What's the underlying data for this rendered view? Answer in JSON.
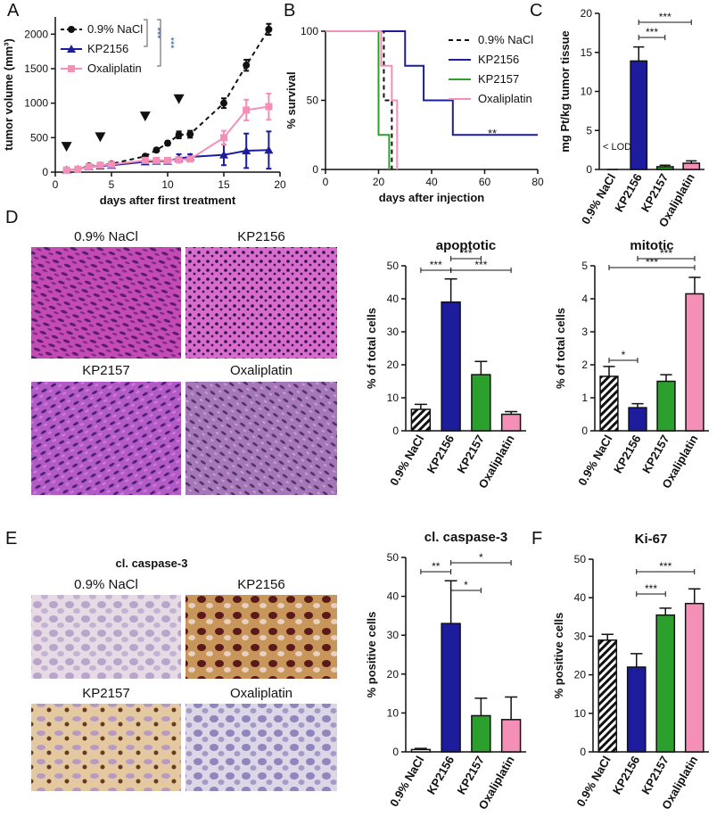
{
  "figure": {
    "panel_labels": [
      "A",
      "B",
      "C",
      "D",
      "E",
      "F"
    ],
    "images_D": [
      "0.9% NaCl",
      "KP2156",
      "KP2157",
      "Oxaliplatin"
    ],
    "images_E_title": "cl. caspase-3",
    "images_E": [
      "0.9% NaCl",
      "KP2156",
      "KP2157",
      "Oxaliplatin"
    ]
  },
  "chart_data": [
    {
      "type": "line",
      "xlabel": "days after first treatment",
      "ylabel": "tumor volume (mm³)",
      "xlim": [
        0,
        20
      ],
      "xticks": [
        0,
        5,
        10,
        15,
        20
      ],
      "ylim": [
        0,
        2250
      ],
      "yticks": [
        0,
        500,
        1000,
        1500,
        2000
      ],
      "x": [
        1,
        2,
        3,
        4,
        5,
        8,
        9,
        10,
        11,
        12,
        15,
        17,
        19
      ],
      "series": [
        {
          "name": "0.9% NaCl",
          "color": "#111111",
          "marker": "circle",
          "dashed": true,
          "values": [
            30,
            40,
            90,
            100,
            120,
            230,
            320,
            420,
            540,
            550,
            1000,
            1550,
            2070
          ],
          "errors": [
            5,
            5,
            10,
            10,
            15,
            20,
            25,
            30,
            50,
            50,
            70,
            80,
            80
          ]
        },
        {
          "name": "KP2156",
          "color": "#1c1c9c",
          "marker": "triangle",
          "dashed": false,
          "values": [
            30,
            40,
            80,
            90,
            100,
            150,
            160,
            160,
            200,
            220,
            250,
            310,
            320
          ],
          "errors": [
            5,
            5,
            10,
            10,
            10,
            20,
            20,
            20,
            60,
            40,
            150,
            250,
            270
          ]
        },
        {
          "name": "Oxaliplatin",
          "color": "#f48fb8",
          "marker": "square",
          "dashed": false,
          "values": [
            30,
            40,
            80,
            100,
            110,
            170,
            170,
            170,
            180,
            190,
            500,
            900,
            950
          ],
          "errors": [
            5,
            5,
            10,
            10,
            10,
            20,
            20,
            20,
            20,
            30,
            100,
            150,
            190
          ]
        }
      ],
      "treatment_markers": {
        "x": [
          1,
          4,
          8,
          11
        ],
        "y": [
          360,
          500,
          800,
          1050
        ]
      },
      "annotations": [
        "***",
        "***"
      ]
    },
    {
      "type": "step",
      "xlabel": "days after injection",
      "ylabel": "% survival",
      "xlim": [
        0,
        80
      ],
      "xticks": [
        0,
        20,
        40,
        60,
        80
      ],
      "ylim": [
        0,
        100
      ],
      "yticks": [
        0,
        50,
        100
      ],
      "series": [
        {
          "name": "0.9% NaCl",
          "color": "#111111",
          "dashed": true,
          "x": [
            0,
            22,
            22,
            25,
            25
          ],
          "values": [
            100,
            100,
            50,
            50,
            0
          ]
        },
        {
          "name": "KP2156",
          "color": "#1c1c9c",
          "dashed": false,
          "x": [
            0,
            30,
            30,
            37,
            37,
            48,
            48,
            80
          ],
          "values": [
            100,
            100,
            75,
            75,
            50,
            50,
            25,
            25
          ]
        },
        {
          "name": "KP2157",
          "color": "#2ca02c",
          "dashed": false,
          "x": [
            0,
            20,
            20,
            24,
            24
          ],
          "values": [
            100,
            100,
            25,
            25,
            0
          ]
        },
        {
          "name": "Oxaliplatin",
          "color": "#f48fb8",
          "dashed": false,
          "x": [
            0,
            21,
            21,
            25,
            25,
            27,
            27
          ],
          "values": [
            100,
            100,
            75,
            75,
            50,
            50,
            0
          ]
        }
      ],
      "annotations": [
        "**"
      ]
    },
    {
      "type": "bar",
      "ylabel": "mg Pt/kg tumor tissue",
      "categories": [
        "0.9% NaCl",
        "KP2156",
        "KP2157",
        "Oxaliplatin"
      ],
      "values": [
        0,
        13.9,
        0.35,
        0.8
      ],
      "errors": [
        0,
        1.8,
        0.2,
        0.3
      ],
      "colors": [
        "hatch",
        "#1c1c9c",
        "#2ca02c",
        "#f48fb8"
      ],
      "ylim": [
        0,
        20
      ],
      "yticks": [
        0,
        5,
        10,
        15,
        20
      ],
      "annotations": [
        "***",
        "***"
      ],
      "note": "< LOD"
    },
    {
      "type": "bar",
      "title": "apoptotic",
      "ylabel": "% of total cells",
      "categories": [
        "0.9% NaCl",
        "KP2156",
        "KP2157",
        "Oxaliplatin"
      ],
      "values": [
        6.5,
        39,
        17,
        5
      ],
      "errors": [
        1.5,
        7,
        4,
        0.8
      ],
      "colors": [
        "hatch",
        "#1c1c9c",
        "#2ca02c",
        "#f48fb8"
      ],
      "ylim": [
        0,
        50
      ],
      "yticks": [
        0,
        10,
        20,
        30,
        40,
        50
      ],
      "annotations": [
        "***",
        "***",
        "***"
      ]
    },
    {
      "type": "bar",
      "title": "mitotic",
      "ylabel": "% of total cells",
      "categories": [
        "0.9% NaCl",
        "KP2156",
        "KP2157",
        "Oxaliplatin"
      ],
      "values": [
        1.65,
        0.7,
        1.5,
        4.15
      ],
      "errors": [
        0.3,
        0.12,
        0.2,
        0.5
      ],
      "colors": [
        "hatch",
        "#1c1c9c",
        "#2ca02c",
        "#f48fb8"
      ],
      "ylim": [
        0,
        5
      ],
      "yticks": [
        0,
        1,
        2,
        3,
        4,
        5
      ],
      "annotations": [
        "*",
        "***",
        "***"
      ]
    },
    {
      "type": "bar",
      "title": "cl. caspase-3",
      "ylabel": "% positive cells",
      "categories": [
        "0.9% NaCl",
        "KP2156",
        "KP2157",
        "Oxaliplatin"
      ],
      "values": [
        0.6,
        33,
        9.3,
        8.3
      ],
      "errors": [
        0.3,
        11,
        4.5,
        5.8
      ],
      "colors": [
        "#ffffff",
        "#1c1c9c",
        "#2ca02c",
        "#f48fb8"
      ],
      "ylim": [
        0,
        50
      ],
      "yticks": [
        0,
        10,
        20,
        30,
        40,
        50
      ],
      "annotations": [
        "**",
        "*",
        "*"
      ]
    },
    {
      "type": "bar",
      "title": "Ki-67",
      "ylabel": "% positive cells",
      "categories": [
        "0.9% NaCl",
        "KP2156",
        "KP2157",
        "Oxaliplatin"
      ],
      "values": [
        29,
        22,
        35.5,
        38.5
      ],
      "errors": [
        1.5,
        3.5,
        1.8,
        3.8
      ],
      "colors": [
        "hatch",
        "#1c1c9c",
        "#2ca02c",
        "#f48fb8"
      ],
      "ylim": [
        0,
        50
      ],
      "yticks": [
        0,
        10,
        20,
        30,
        40,
        50
      ],
      "annotations": [
        "***",
        "***"
      ]
    }
  ]
}
